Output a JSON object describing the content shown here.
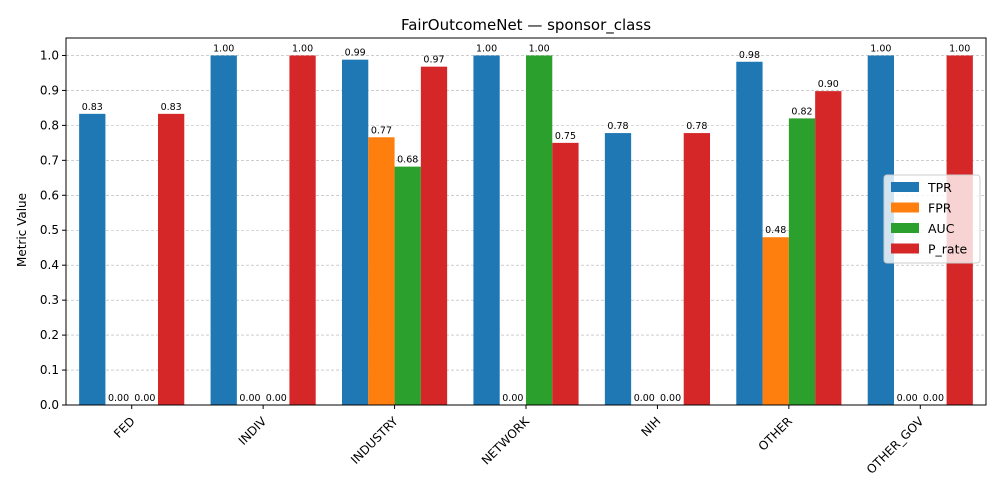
{
  "chart_data": {
    "type": "bar",
    "title": "FairOutcomeNet — sponsor_class",
    "xlabel": "",
    "ylabel": "Metric Value",
    "ylim": [
      0,
      1.05
    ],
    "yticks": [
      "0.0",
      "0.1",
      "0.2",
      "0.3",
      "0.4",
      "0.5",
      "0.6",
      "0.7",
      "0.8",
      "0.9",
      "1.0"
    ],
    "grid": true,
    "legend_position": "center-right",
    "categories": [
      "FED",
      "INDIV",
      "INDUSTRY",
      "NETWORK",
      "NIH",
      "OTHER",
      "OTHER_GOV"
    ],
    "series": [
      {
        "name": "TPR",
        "color": "#1f77b4",
        "values": [
          0.833,
          1.0,
          0.988,
          1.0,
          0.778,
          0.982,
          1.0
        ],
        "labels": [
          "0.83",
          "1.00",
          "0.99",
          "1.00",
          "0.78",
          "0.98",
          "1.00"
        ]
      },
      {
        "name": "FPR",
        "color": "#ff7f0e",
        "values": [
          0.0,
          0.0,
          0.766,
          0.0,
          0.0,
          0.48,
          0.0
        ],
        "labels": [
          "0.00",
          "0.00",
          "0.77",
          "0.00",
          "0.00",
          "0.48",
          "0.00"
        ]
      },
      {
        "name": "AUC",
        "color": "#2ca02c",
        "values": [
          0.0,
          0.0,
          0.682,
          1.0,
          0.0,
          0.82,
          0.0
        ],
        "labels": [
          "0.00",
          "0.00",
          "0.68",
          "1.00",
          "0.00",
          "0.82",
          "0.00"
        ]
      },
      {
        "name": "P_rate",
        "color": "#d62728",
        "values": [
          0.833,
          1.0,
          0.968,
          0.75,
          0.778,
          0.898,
          1.0
        ],
        "labels": [
          "0.83",
          "1.00",
          "0.97",
          "0.75",
          "0.78",
          "0.90",
          "1.00"
        ]
      }
    ]
  }
}
